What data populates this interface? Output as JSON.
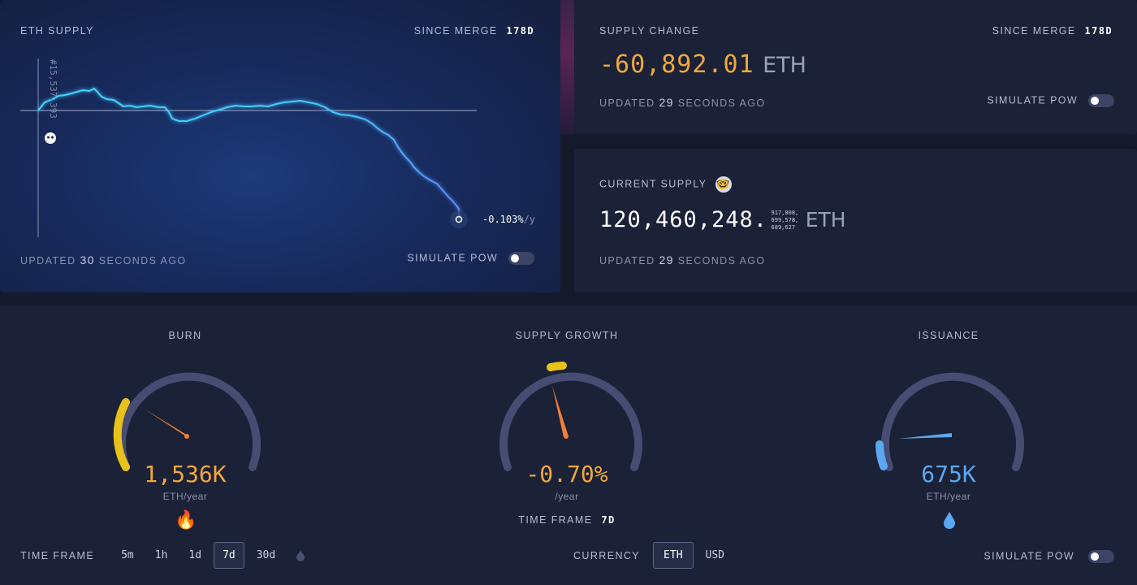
{
  "eth_supply": {
    "title": "ETH SUPPLY",
    "since_label": "SINCE MERGE",
    "since_value": "178d",
    "block_marker": "#15,537,393",
    "rate": "-0.103%",
    "rate_unit": "/y",
    "updated_prefix": "UPDATED",
    "updated_value": "30",
    "updated_suffix": "SECONDS AGO",
    "simulate_label": "SIMULATE PoW"
  },
  "supply_change": {
    "title": "SUPPLY CHANGE",
    "since_label": "SINCE MERGE",
    "since_value": "178d",
    "value": "-60,892.01",
    "unit": "ETH",
    "updated_prefix": "UPDATED",
    "updated_value": "29",
    "updated_suffix": "SECONDS AGO",
    "simulate_label": "SIMULATE PoW"
  },
  "current_supply": {
    "title": "CURRENT SUPPLY",
    "emoji": "🤓",
    "value": "120,460,248.",
    "decimals_line1": "917,808,",
    "decimals_line2": "699,578,",
    "decimals_line3": "689,627",
    "unit": "ETH",
    "updated_prefix": "UPDATED",
    "updated_value": "29",
    "updated_suffix": "SECONDS AGO"
  },
  "gauges": {
    "burn": {
      "title": "BURN",
      "value": "1,536K",
      "unit": "ETH/year",
      "emoji": "🔥",
      "level": 0.3
    },
    "supply_growth": {
      "title": "SUPPLY GROWTH",
      "value": "-0.70%",
      "unit": "/year",
      "level": 0.45
    },
    "issuance": {
      "title": "ISSUANCE",
      "value": "675K",
      "unit": "ETH/year",
      "emoji": "💧",
      "level": 0.08
    },
    "growth_timeframe_label": "TIME FRAME",
    "growth_timeframe_value": "7d"
  },
  "controls": {
    "timeframe_label": "TIME FRAME",
    "timeframes": [
      "5m",
      "1h",
      "1d",
      "7d",
      "30d"
    ],
    "active_timeframe": "7d",
    "currency_label": "CURRENCY",
    "currency_eth": "ETH",
    "currency_usd": "USD",
    "simulate_label": "SIMULATE PoW"
  },
  "colors": {
    "accent_orange": "#f0a83a",
    "accent_yellow": "#e8c21a",
    "accent_blue": "#5ba8f2",
    "line_cyan": "#3fd4ff"
  }
}
